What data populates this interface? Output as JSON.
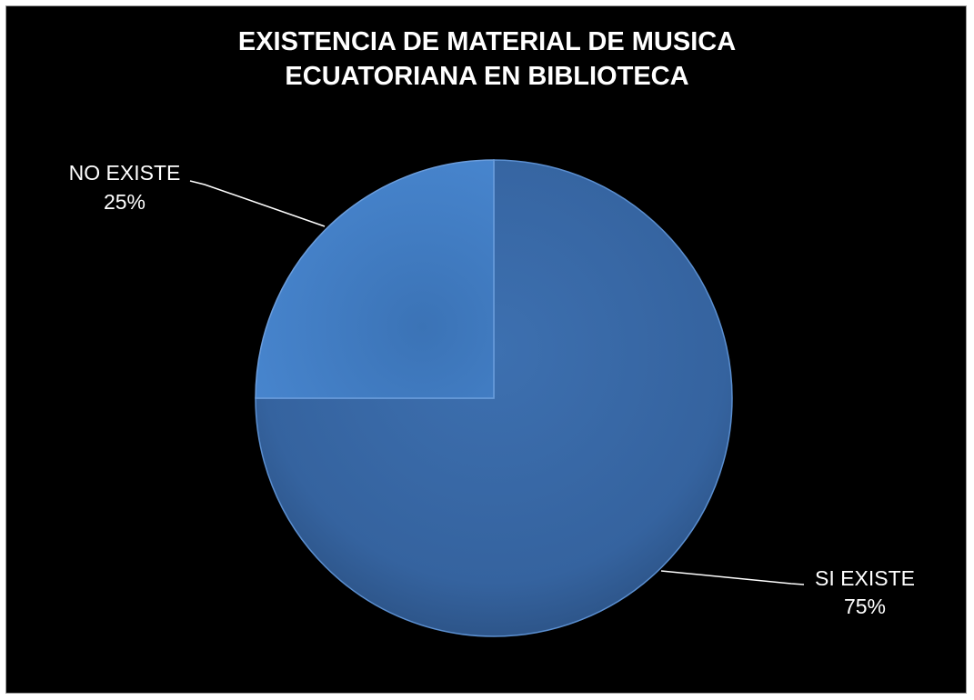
{
  "chart_data": {
    "type": "pie",
    "title_lines": [
      "EXISTENCIA DE MATERIAL DE MUSICA",
      "ECUATORIANA EN BIBLIOTECA"
    ],
    "slices": [
      {
        "label": "SI EXISTE",
        "value": 75,
        "value_label": "75%",
        "color": "#3a6aa8"
      },
      {
        "label": "NO EXISTE",
        "value": 25,
        "value_label": "25%",
        "color": "#3f78bd"
      }
    ],
    "legend": "none",
    "background": "#000000"
  }
}
